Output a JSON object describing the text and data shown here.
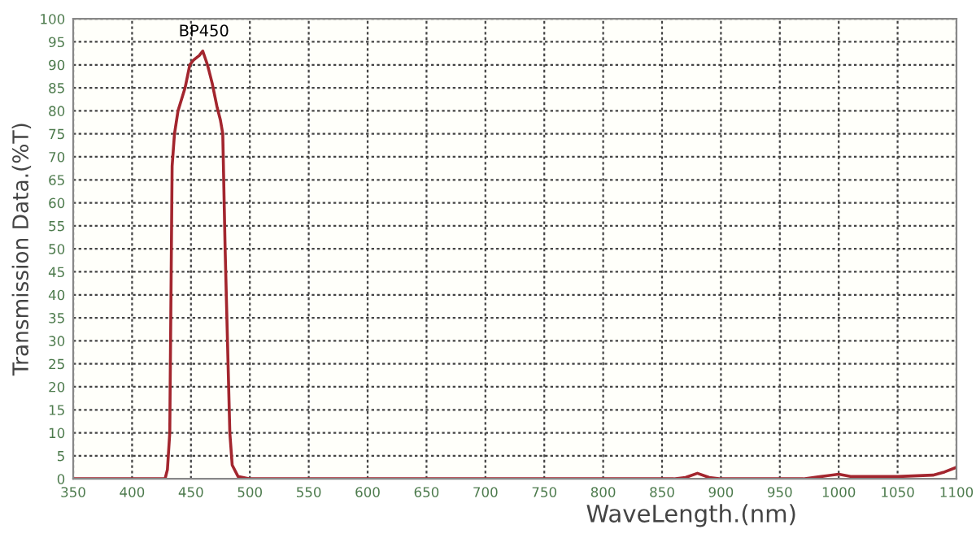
{
  "chart_data": {
    "type": "line",
    "xlabel": "WaveLength.(nm)",
    "ylabel": "Transmission Data.(%T)",
    "annotations": [
      "BP450"
    ],
    "series": [
      {
        "color": "#a3262e",
        "x": [
          350,
          400,
          428,
          430,
          432,
          434,
          436,
          439,
          445,
          449,
          452,
          457,
          460,
          464,
          468,
          472,
          475,
          477,
          479,
          483,
          485,
          490,
          500,
          600,
          700,
          800,
          860,
          870,
          880,
          890,
          900,
          970,
          985,
          1000,
          1010,
          1050,
          1080,
          1090,
          1100
        ],
        "values": [
          0,
          0,
          0,
          2,
          10,
          68,
          75,
          80,
          85,
          90,
          91,
          92,
          93,
          90,
          86,
          81,
          78,
          75,
          50,
          10,
          3,
          0.5,
          0,
          0,
          0,
          0,
          0,
          0.3,
          1.2,
          0.3,
          0,
          0,
          0.5,
          1,
          0.5,
          0.5,
          0.8,
          1.5,
          2.5
        ]
      }
    ],
    "xlim": [
      350,
      1100
    ],
    "ylim": [
      0,
      100
    ],
    "xticks": [
      350,
      400,
      450,
      500,
      550,
      600,
      650,
      700,
      750,
      800,
      850,
      900,
      950,
      1000,
      1050,
      1100
    ],
    "yticks": [
      0,
      5,
      10,
      15,
      20,
      25,
      30,
      35,
      40,
      45,
      50,
      55,
      60,
      65,
      70,
      75,
      80,
      85,
      90,
      95,
      100
    ],
    "grid": true,
    "marker": "none",
    "line_style": "solid"
  }
}
